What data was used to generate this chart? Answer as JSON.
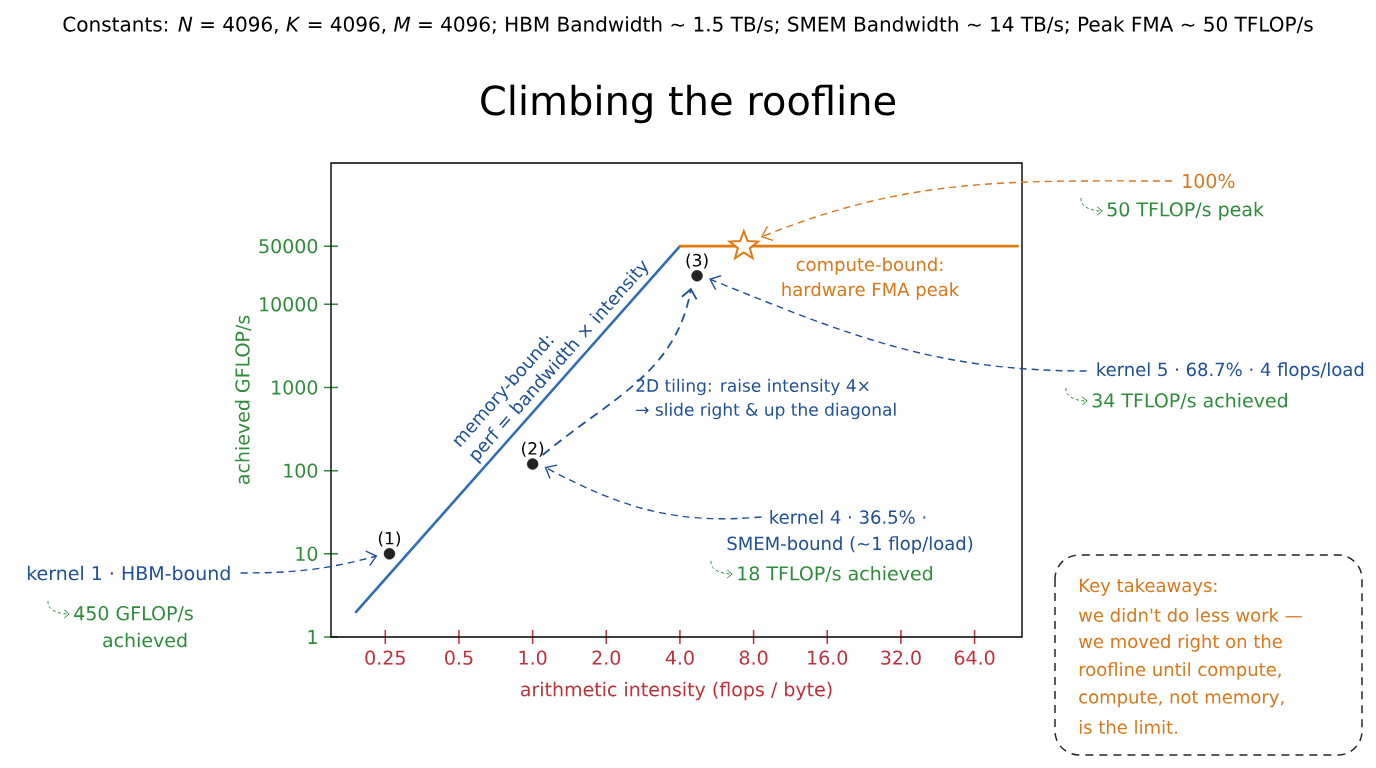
{
  "chart_data": {
    "type": "line",
    "title": "Climbing the roofline",
    "subtitle": "Constants: *N* = 4096, *K* = 4096, *M* = 4096; HBM Bandwidth ~ 1.5 TB/s; SMEM Bandwidth ~ 14 TB/s; Peak FMA ~ 50 TFLOP/s",
    "xlabel": "arithmetic intensity (flops / byte)",
    "ylabel": "achieved GFLOP/s",
    "log": "xy",
    "xlim": [
      0.15,
      100
    ],
    "xticks": [
      0.25,
      0.5,
      {
        "value": 1,
        "label": "1.0"
      },
      {
        "value": 2,
        "label": "2.0"
      },
      {
        "value": 4,
        "label": "4.0"
      },
      {
        "value": 8,
        "label": "8.0"
      },
      {
        "value": 16,
        "label": "16.0"
      },
      {
        "value": 32,
        "label": "32.0"
      },
      {
        "value": 64,
        "label": "64.0"
      }
    ],
    "ylim": [
      1,
      500000
    ],
    "yticks": [
      1,
      10,
      100,
      1000,
      10000,
      50000
    ],
    "series": [
      {
        "color": "#2f6db5",
        "x": [
          0.19,
          4
        ],
        "values": [
          2,
          50000
        ]
      },
      {
        "color": "#e07b12",
        "x": [
          4,
          96
        ],
        "values": [
          50000,
          50000
        ]
      },
      {
        "type": "scatter",
        "color": "#e07b12",
        "x": [
          7.3
        ],
        "values": [
          50000
        ],
        "marker": "star"
      },
      {
        "type": "scatter",
        "color": "#222222",
        "x": [
          0.26,
          1,
          4.7
        ],
        "values": [
          10,
          120,
          22000
        ],
        "marker": "circle"
      }
    ],
    "annotations": [
      "memory-bound:",
      "perf = bandwidth × intensity",
      "compute-bound:",
      "hardware FMA peak",
      "100%",
      "50 TFLOP/s peak",
      "kernel 5 · 68.7% · 4 flops/load",
      "34 TFLOP/s achieved",
      "2D tiling: raise intensity 4×",
      "→ slide right & up the diagonal",
      "kernel 4 · 36.5% ·",
      "SMEM-bound (~1 flop/load)",
      "18 TFLOP/s achieved",
      "kernel 1 · HBM-bound",
      "450 GFLOP/s",
      "achieved",
      {
        "text": "(1)",
        "x": 0.26,
        "y": 10
      },
      {
        "text": "(2)",
        "x": 1,
        "y": 120
      },
      {
        "text": "(3)",
        "x": 4.7,
        "y": 22000
      },
      "Key takeaways:",
      "we didn't do less work —",
      "we moved right on the",
      "roofline until compute,",
      "compute, not memory,",
      "is the limit."
    ]
  }
}
